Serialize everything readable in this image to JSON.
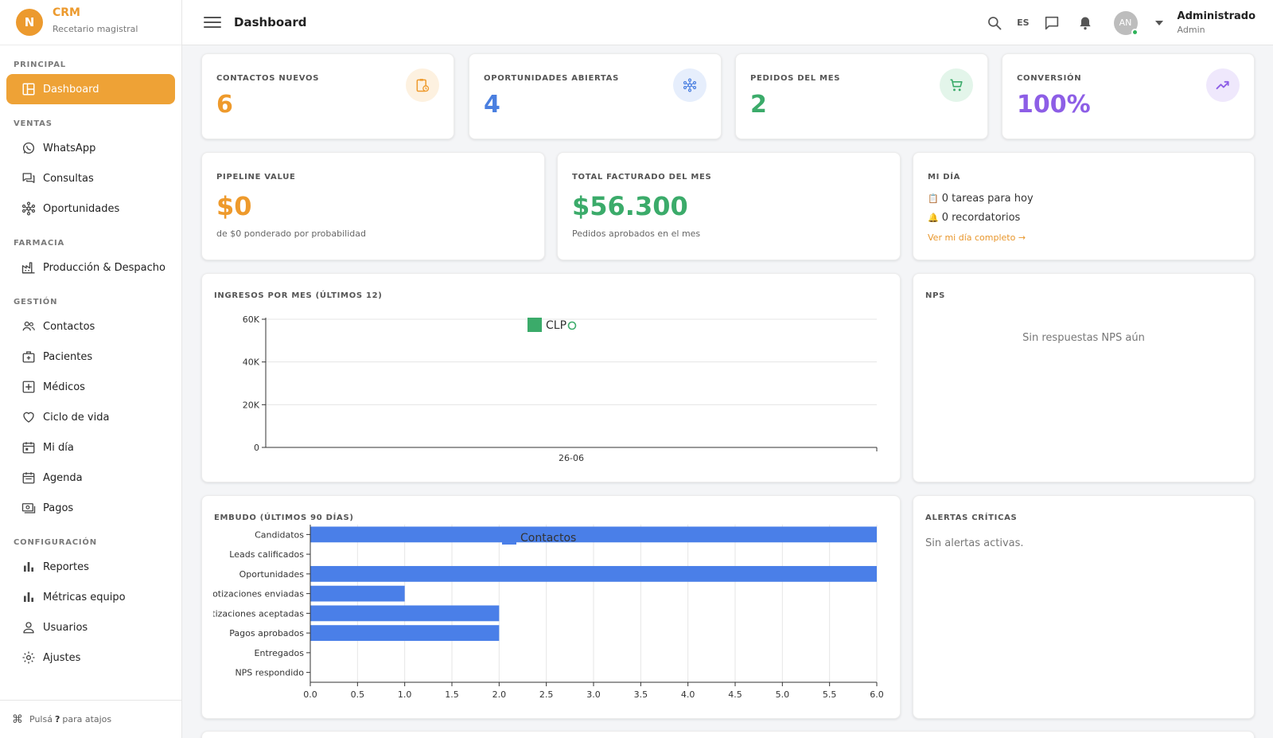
{
  "brand": {
    "initial": "N",
    "title": "CRM",
    "subtitle": "Recetario magistral"
  },
  "sidebar": {
    "sections": [
      {
        "label": "PRINCIPAL",
        "items": [
          {
            "label": "Dashboard",
            "icon": "dashboard-icon",
            "active": true
          }
        ]
      },
      {
        "label": "VENTAS",
        "items": [
          {
            "label": "WhatsApp",
            "icon": "whatsapp-icon"
          },
          {
            "label": "Consultas",
            "icon": "chat-icon"
          },
          {
            "label": "Oportunidades",
            "icon": "hub-icon"
          }
        ]
      },
      {
        "label": "FARMACIA",
        "items": [
          {
            "label": "Producción & Despacho",
            "icon": "factory-icon"
          }
        ]
      },
      {
        "label": "GESTIÓN",
        "items": [
          {
            "label": "Contactos",
            "icon": "people-icon"
          },
          {
            "label": "Pacientes",
            "icon": "patient-icon"
          },
          {
            "label": "Médicos",
            "icon": "medical-cross-icon"
          },
          {
            "label": "Ciclo de vida",
            "icon": "heart-icon"
          },
          {
            "label": "Mi día",
            "icon": "calendar-day-icon"
          },
          {
            "label": "Agenda",
            "icon": "calendar-icon"
          },
          {
            "label": "Pagos",
            "icon": "payments-icon"
          }
        ]
      },
      {
        "label": "CONFIGURACIÓN",
        "items": [
          {
            "label": "Reportes",
            "icon": "bar-chart-icon"
          },
          {
            "label": "Métricas equipo",
            "icon": "bar-chart-icon"
          },
          {
            "label": "Usuarios",
            "icon": "user-icon"
          },
          {
            "label": "Ajustes",
            "icon": "gear-icon"
          }
        ]
      }
    ],
    "footer": {
      "pre": "Pulsá",
      "key": "?",
      "post": "para atajos"
    }
  },
  "topbar": {
    "title": "Dashboard",
    "lang": "ES",
    "user_initials": "AN",
    "user_name": "Administrado",
    "user_role": "Admin"
  },
  "kpis": [
    {
      "label": "CONTACTOS NUEVOS",
      "value": "6",
      "color": "#ee9a2c",
      "icon": "clipboard-clock-icon",
      "icon_bg": "#fdf1e0"
    },
    {
      "label": "OPORTUNIDADES ABIERTAS",
      "value": "4",
      "color": "#4a7fe0",
      "icon": "hub-icon",
      "icon_bg": "#e6eefc"
    },
    {
      "label": "PEDIDOS DEL MES",
      "value": "2",
      "color": "#3bab6a",
      "icon": "cart-icon",
      "icon_bg": "#e3f5ea"
    },
    {
      "label": "CONVERSIÓN",
      "value": "100%",
      "color": "#8d5ee6",
      "icon": "trending-up-icon",
      "icon_bg": "#efe8fc"
    }
  ],
  "pipeline": {
    "label": "PIPELINE VALUE",
    "value": "$0",
    "color": "#ee9a2c",
    "sub": "de $0 ponderado por probabilidad"
  },
  "facturado": {
    "label": "TOTAL FACTURADO DEL MES",
    "value": "$56.300",
    "color": "#3bab6a",
    "sub": "Pedidos aprobados en el mes"
  },
  "mi_dia": {
    "label": "MI DÍA",
    "tasks": "0 tareas para hoy",
    "reminders": "0 recordatorios",
    "link": "Ver mi día completo →"
  },
  "nps": {
    "title": "NPS",
    "empty": "Sin respuestas NPS aún"
  },
  "alertas": {
    "title": "ALERTAS CRÍTICAS",
    "empty": "Sin alertas activas."
  },
  "chart_data": [
    {
      "type": "bar",
      "title": "INGRESOS POR MES (ÚLTIMOS 12)",
      "categories": [
        "26-06"
      ],
      "series": [
        {
          "name": "CLP",
          "values": [
            0
          ],
          "color": "#3bab6a"
        }
      ],
      "ylim": [
        0,
        60000
      ],
      "yticks": [
        "0",
        "20K",
        "40K",
        "60K"
      ],
      "ytick_values": [
        0,
        20000,
        40000,
        60000
      ],
      "grid": true,
      "legend": "top-center"
    },
    {
      "type": "bar",
      "orientation": "horizontal",
      "title": "EMBUDO (ÚLTIMOS 90 DÍAS)",
      "categories": [
        "Candidatos",
        "Leads calificados",
        "Oportunidades",
        "Cotizaciones enviadas",
        "Cotizaciones aceptadas",
        "Pagos aprobados",
        "Entregados",
        "NPS respondido"
      ],
      "series": [
        {
          "name": "Contactos",
          "values": [
            6,
            0,
            6,
            1,
            2,
            2,
            0,
            0
          ],
          "color": "#4a7fe8"
        }
      ],
      "xlim": [
        0,
        6
      ],
      "xticks": [
        "0.0",
        "0.5",
        "1.0",
        "1.5",
        "2.0",
        "2.5",
        "3.0",
        "3.5",
        "4.0",
        "4.5",
        "5.0",
        "5.5",
        "6.0"
      ],
      "xtick_values": [
        0,
        0.5,
        1,
        1.5,
        2,
        2.5,
        3,
        3.5,
        4,
        4.5,
        5,
        5.5,
        6
      ],
      "grid": true,
      "legend": "top-center"
    }
  ]
}
